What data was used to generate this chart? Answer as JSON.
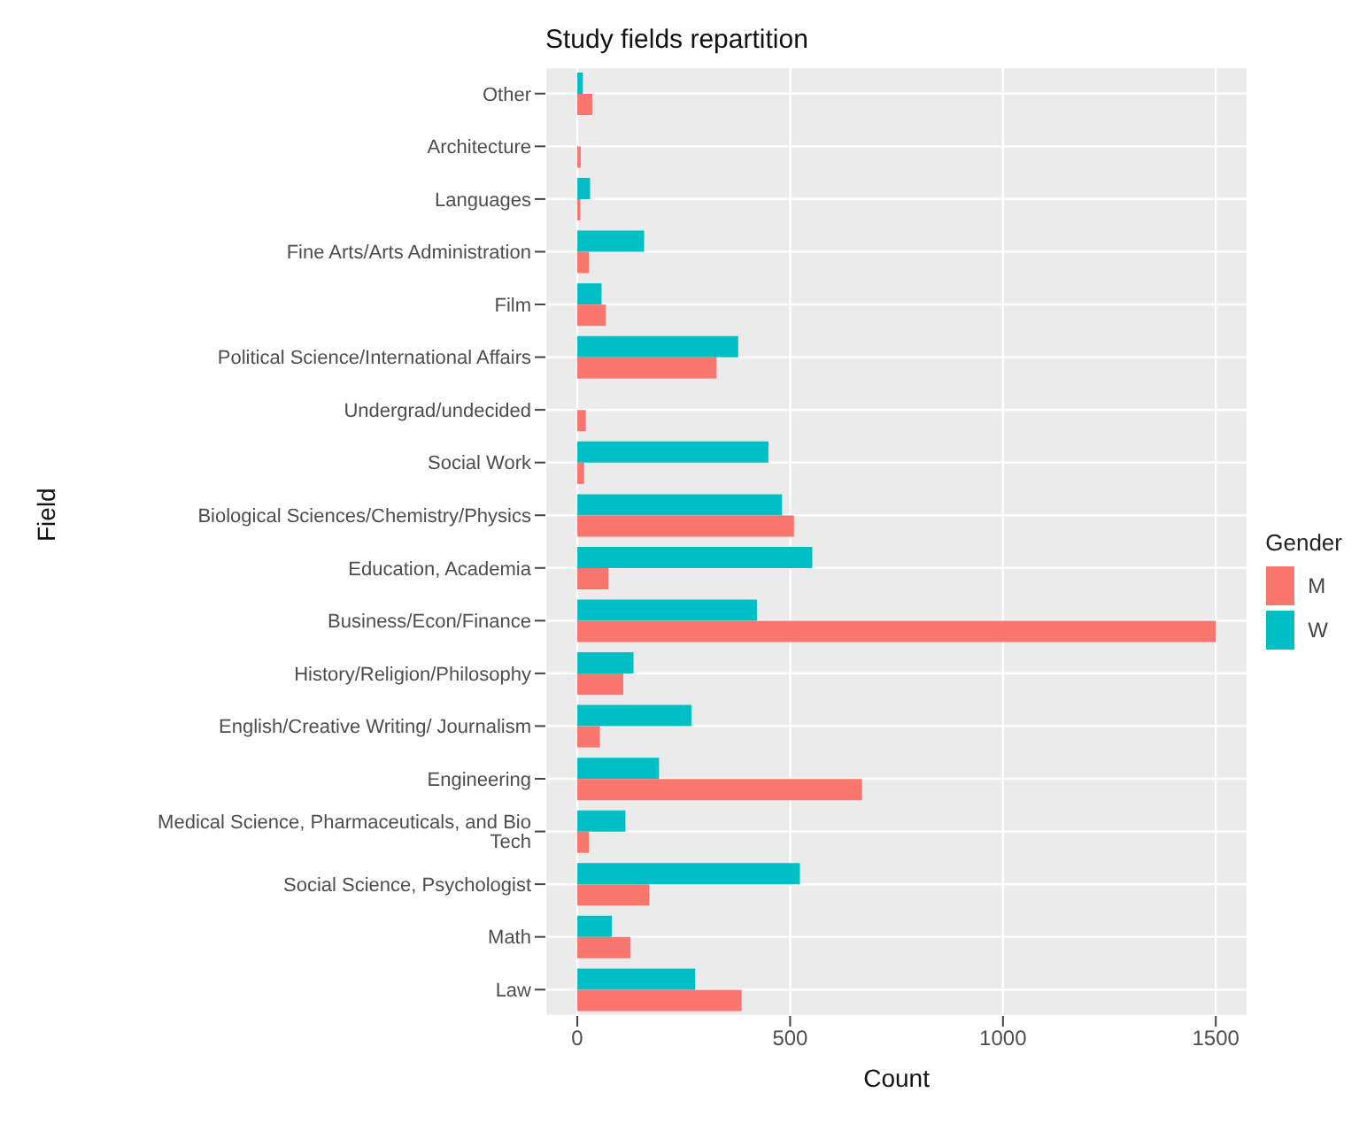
{
  "chart_data": {
    "type": "bar",
    "orientation": "horizontal",
    "title": "Study fields repartition",
    "xlabel": "Count",
    "ylabel": "Field",
    "legend_title": "Gender",
    "categories": [
      "Other",
      "Architecture",
      "Languages",
      "Fine Arts/Arts Administration",
      "Film",
      "Political Science/International Affairs",
      "Undergrad/undecided",
      "Social Work",
      "Biological Sciences/Chemistry/Physics",
      "Education, Academia",
      "Business/Econ/Finance",
      "History/Religion/Philosophy",
      "English/Creative Writing/ Journalism",
      "Engineering",
      "Medical Science, Pharmaceuticals, and Bio Tech",
      "Social Science, Psychologist",
      "Math",
      "Law"
    ],
    "series": [
      {
        "name": "M",
        "color": "#f8766d",
        "values": [
          35,
          8,
          7,
          27,
          67,
          327,
          20,
          16,
          509,
          73,
          1500,
          108,
          53,
          669,
          27,
          169,
          125,
          386
        ]
      },
      {
        "name": "W",
        "color": "#00bfc4",
        "values": [
          13,
          null,
          30,
          157,
          57,
          378,
          null,
          449,
          481,
          552,
          422,
          132,
          268,
          192,
          113,
          523,
          81,
          277
        ]
      }
    ],
    "xlim": [
      -75,
      1575
    ],
    "xticks": [
      0,
      500,
      1000,
      1500
    ],
    "grid": true,
    "legend": "right"
  }
}
